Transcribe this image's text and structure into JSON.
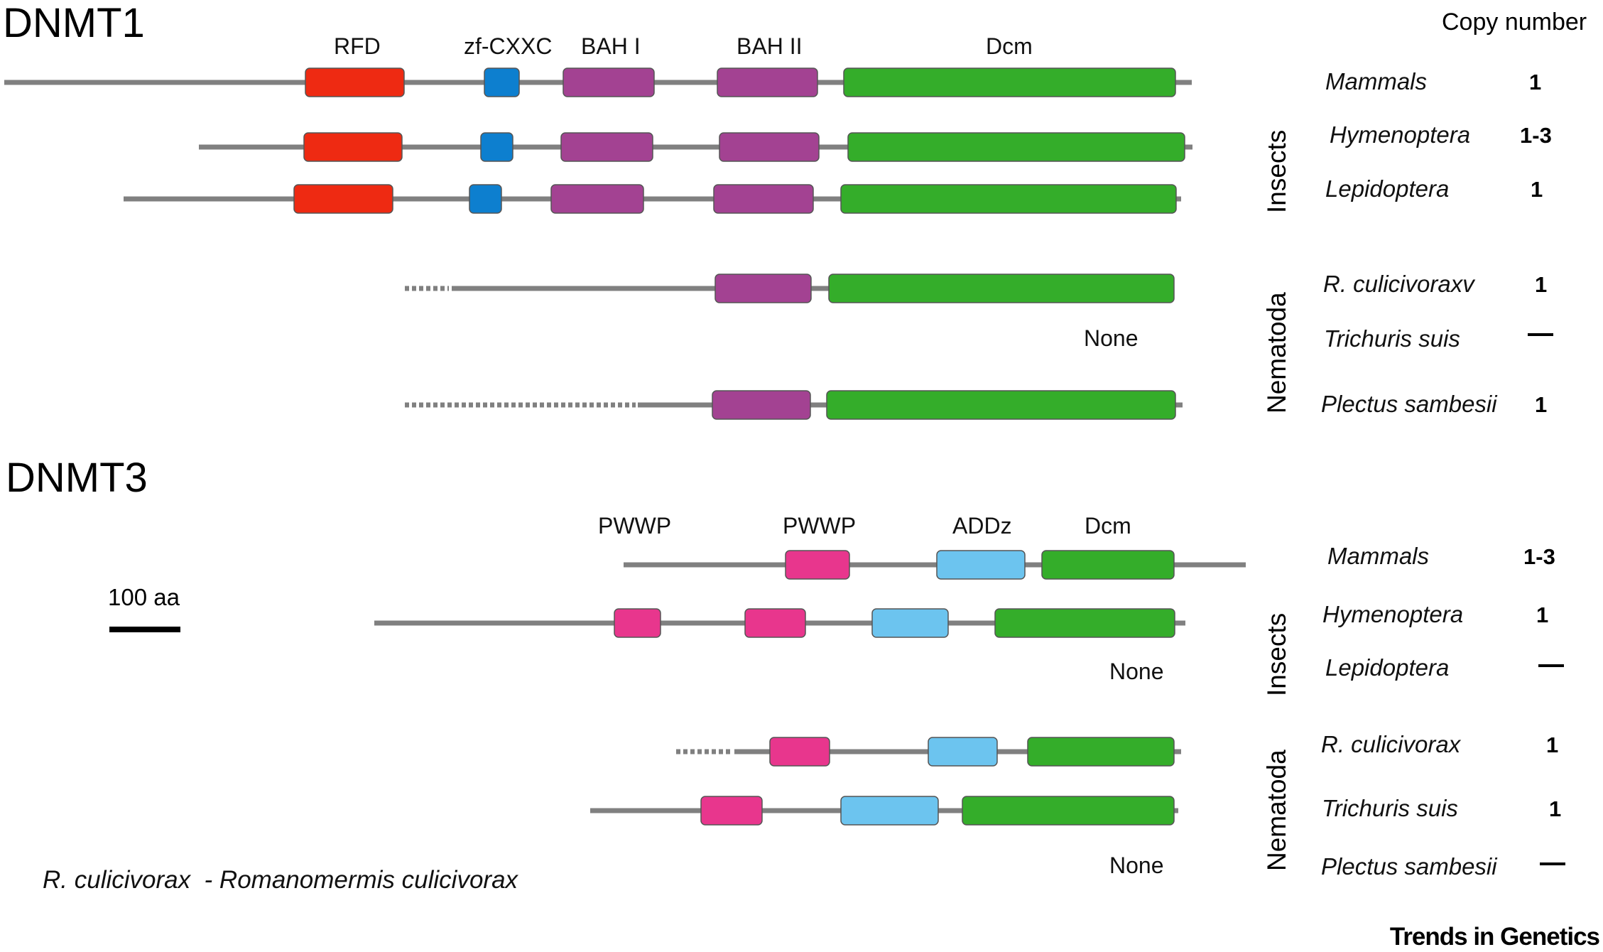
{
  "header": {
    "copy_number_label": "Copy number"
  },
  "colors": {
    "RFD": "#ee2a12",
    "zf-CXXC": "#0d7fcf",
    "BAH": "#a34292",
    "Dcm": "#34ad2a",
    "PWWP": "#e8368d",
    "ADDz": "#6cc4ef",
    "backbone": "#808080"
  },
  "scale_bar": {
    "label": "100 aa"
  },
  "footnote": "R. culicivorax  - Romanomermis culicivorax",
  "brand": "Trends in Genetics",
  "dnmt1": {
    "title": "DNMT1",
    "domain_labels": [
      "RFD",
      "zf-CXXC",
      "BAH I",
      "BAH II",
      "Dcm"
    ],
    "groups": {
      "insects": "Insects",
      "nematoda": "Nematoda"
    },
    "none_label": "None",
    "rows": [
      {
        "species": "Mammals",
        "copy_number": "1"
      },
      {
        "species": "Hymenoptera",
        "copy_number": "1-3"
      },
      {
        "species": "Lepidoptera",
        "copy_number": "1"
      },
      {
        "species": "R. culicivoraxv",
        "copy_number": "1"
      },
      {
        "species": "Trichuris suis",
        "copy_number": ""
      },
      {
        "species": "Plectus sambesii",
        "copy_number": "1"
      }
    ]
  },
  "dnmt3": {
    "title": "DNMT3",
    "domain_labels": [
      "PWWP",
      "PWWP",
      "ADDz",
      "Dcm"
    ],
    "groups": {
      "insects": "Insects",
      "nematoda": "Nematoda"
    },
    "none_label_1": "None",
    "none_label_2": "None",
    "rows": [
      {
        "species": "Mammals",
        "copy_number": "1-3"
      },
      {
        "species": "Hymenoptera",
        "copy_number": "1"
      },
      {
        "species": "Lepidoptera",
        "copy_number": ""
      },
      {
        "species": "R. culicivorax",
        "copy_number": "1"
      },
      {
        "species": "Trichuris suis",
        "copy_number": "1"
      },
      {
        "species": "Plectus sambesii",
        "copy_number": ""
      }
    ]
  }
}
